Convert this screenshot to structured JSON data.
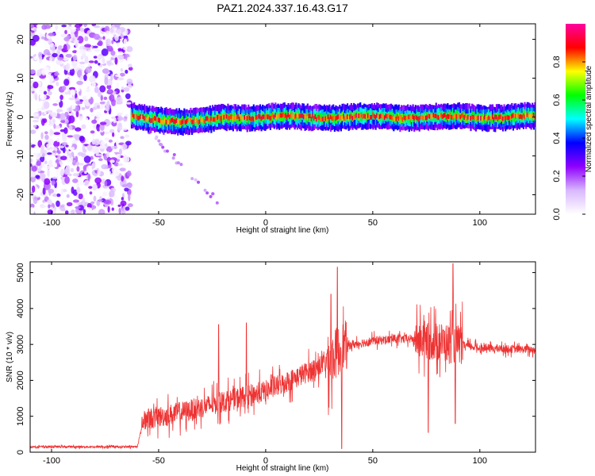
{
  "title": "PAZ1.2024.337.16.43.G17",
  "chart_data": [
    {
      "type": "heatmap",
      "name": "spectrogram",
      "xlabel": "Height of straight line (km)",
      "ylabel": "Frequency (Hz)",
      "xlim": [
        -110,
        126
      ],
      "ylim": [
        -25,
        24
      ],
      "xticks": [
        -100,
        -50,
        0,
        50,
        100
      ],
      "yticks": [
        -20,
        -10,
        0,
        10,
        20
      ],
      "colorbar": {
        "label": "Normalized spectral amplitude",
        "range": [
          0,
          1
        ],
        "ticks": [
          0.0,
          0.2,
          0.4,
          0.6,
          0.8
        ],
        "tick_labels": [
          "0.0",
          "0.2",
          "0.4",
          "0.6",
          "0.8"
        ],
        "colors": [
          "#ffffff",
          "#d9b8ff",
          "#8f00ff",
          "#0000ff",
          "#00ffff",
          "#00ff00",
          "#ffff00",
          "#ff0000",
          "#ff00a0"
        ]
      },
      "regions": [
        {
          "x_range": [
            -110,
            -63
          ],
          "y_range": [
            -25,
            24
          ],
          "description_level": 0.2
        },
        {
          "x_range": [
            -63,
            126
          ],
          "centre_frequency": 0,
          "description_level": 0.9
        }
      ]
    },
    {
      "type": "line",
      "name": "snr",
      "xlabel": "Height of straight line (km)",
      "ylabel": "SNR (10 * v/v)",
      "xlim": [
        -110,
        126
      ],
      "ylim": [
        0,
        5300
      ],
      "xticks": [
        -100,
        -50,
        0,
        50,
        100
      ],
      "yticks": [
        0,
        1000,
        2000,
        3000,
        4000,
        5000
      ],
      "color": "#ee3333",
      "trend": {
        "x": [
          -110,
          -60,
          -57,
          -40,
          -20,
          0,
          15,
          25,
          30,
          36,
          50,
          60,
          70,
          90,
          100,
          126
        ],
        "y": [
          150,
          150,
          900,
          1100,
          1400,
          1700,
          2100,
          2400,
          2550,
          2950,
          3100,
          3150,
          3150,
          3000,
          2900,
          2850
        ]
      },
      "spikes": [
        {
          "x": -22,
          "y": 3550
        },
        {
          "x": -9,
          "y": 3600
        },
        {
          "x": 30.5,
          "y": 4400
        },
        {
          "x": 33.5,
          "y": 5150
        },
        {
          "x": 35.5,
          "y": 100
        },
        {
          "x": 76,
          "y": 550
        },
        {
          "x": 87.5,
          "y": 5250
        },
        {
          "x": 88.5,
          "y": 800
        }
      ]
    }
  ]
}
